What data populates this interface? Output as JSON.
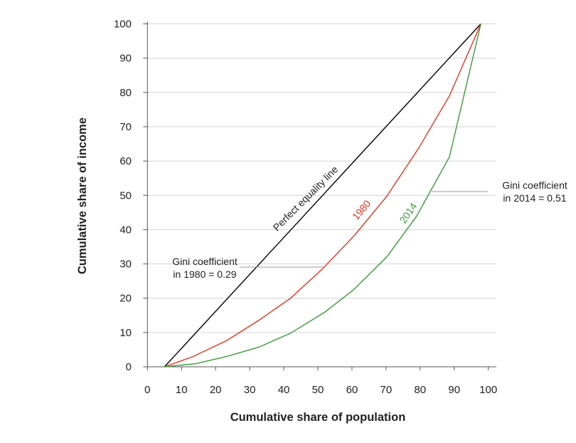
{
  "chart_data": {
    "type": "line",
    "title": "",
    "xlabel": "Cumulative share of population",
    "ylabel": "Cumulative share of income",
    "xlim": [
      0,
      100
    ],
    "ylim": [
      0,
      100
    ],
    "xticks": [
      "0",
      "10",
      "20",
      "30",
      "40",
      "50",
      "60",
      "70",
      "80",
      "90",
      "100"
    ],
    "yticks": [
      "0",
      "10",
      "20",
      "30",
      "40",
      "50",
      "60",
      "70",
      "80",
      "90",
      "100"
    ],
    "grid": "horizontal",
    "series": [
      {
        "name": "Perfect equality line",
        "color": "#000000",
        "x": [
          5,
          97.8
        ],
        "y": [
          0,
          100
        ]
      },
      {
        "name": "1980",
        "color": "#e8321e",
        "x": [
          5,
          13.4,
          23.2,
          32.6,
          42,
          51.4,
          60.8,
          70.2,
          79.6,
          88.6,
          97.8
        ],
        "y": [
          0,
          3.0,
          7.6,
          13.5,
          20,
          28.6,
          38.4,
          49.7,
          63.8,
          79,
          100
        ]
      },
      {
        "name": "2014",
        "color": "#3a9a3a",
        "x": [
          5,
          14.1,
          23.2,
          32.6,
          42,
          52,
          60.4,
          70.2,
          78.9,
          88.6,
          97.8
        ],
        "y": [
          0,
          0.9,
          3.0,
          5.7,
          9.8,
          15.9,
          22.4,
          32,
          43.8,
          61.2,
          100
        ]
      }
    ],
    "annotations": [
      {
        "line1": "Gini coefficient",
        "line2": "in 1980 = 0.29"
      },
      {
        "line1": "Gini coefficient",
        "line2": "in 2014 = 0.51"
      }
    ]
  }
}
